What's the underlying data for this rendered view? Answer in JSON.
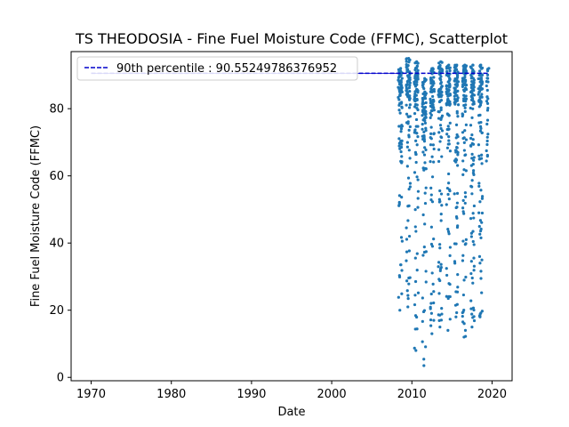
{
  "chart_data": {
    "type": "scatter",
    "title": "TS THEODOSIA - Fine Fuel Moisture Code (FFMC), Scatterplot",
    "xlabel": "Date",
    "ylabel": "Fine Fuel Moisture Code (FFMC)",
    "xlim": [
      1967.5,
      2022.5
    ],
    "ylim": [
      -1,
      97
    ],
    "xticks": [
      1970,
      1980,
      1990,
      2000,
      2010,
      2020
    ],
    "yticks": [
      0,
      20,
      40,
      60,
      80
    ],
    "grid": false,
    "legend_position": "top-left",
    "percentile_line": {
      "label": "90th percentile : 90.55249786376952",
      "value": 90.55249786376952,
      "x_start": 1970,
      "x_end": 2019.5,
      "color": "#0000cc"
    },
    "point_color": "#1f77b4",
    "seasons": [
      {
        "year": 2008,
        "x_range": [
          2008.3,
          2008.8
        ],
        "min": 20,
        "max": 92
      },
      {
        "year": 2009,
        "x_range": [
          2009.3,
          2009.8
        ],
        "min": 21,
        "max": 95
      },
      {
        "year": 2010,
        "x_range": [
          2010.3,
          2010.8
        ],
        "min": 8,
        "max": 94
      },
      {
        "year": 2011,
        "x_range": [
          2011.3,
          2011.8
        ],
        "min": 3.5,
        "max": 89
      },
      {
        "year": 2012,
        "x_range": [
          2012.3,
          2012.8
        ],
        "min": 13,
        "max": 92
      },
      {
        "year": 2013,
        "x_range": [
          2013.3,
          2013.8
        ],
        "min": 15,
        "max": 94
      },
      {
        "year": 2014,
        "x_range": [
          2014.3,
          2014.8
        ],
        "min": 14,
        "max": 93
      },
      {
        "year": 2015,
        "x_range": [
          2015.3,
          2015.8
        ],
        "min": 18,
        "max": 93
      },
      {
        "year": 2016,
        "x_range": [
          2016.3,
          2016.8
        ],
        "min": 12,
        "max": 93
      },
      {
        "year": 2017,
        "x_range": [
          2017.3,
          2017.8
        ],
        "min": 15,
        "max": 93
      },
      {
        "year": 2018,
        "x_range": [
          2018.3,
          2018.8
        ],
        "min": 18,
        "max": 93
      },
      {
        "year": 2019,
        "x_range": [
          2019.3,
          2019.5
        ],
        "min": 88,
        "max": 92
      }
    ]
  }
}
